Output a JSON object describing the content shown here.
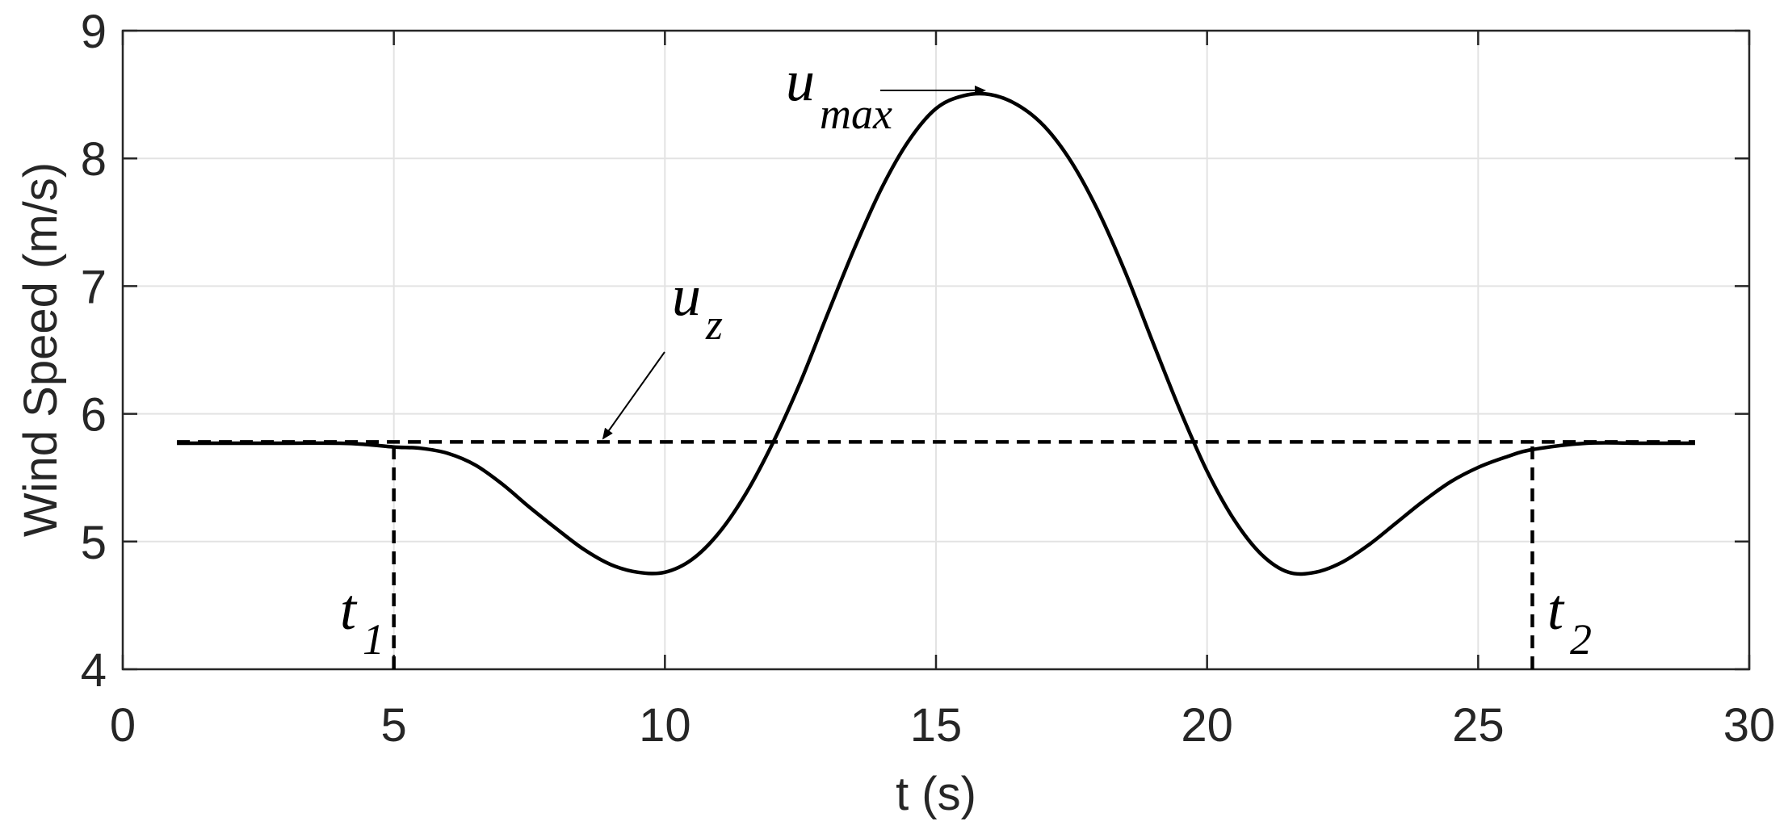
{
  "chart_data": {
    "type": "line",
    "xlabel": "t (s)",
    "ylabel": "Wind Speed  (m/s)",
    "xlim": [
      0,
      30
    ],
    "ylim": [
      4,
      9
    ],
    "xticks": [
      "0",
      "5",
      "10",
      "15",
      "20",
      "25",
      "30"
    ],
    "yticks": [
      "4",
      "5",
      "6",
      "7",
      "8",
      "9"
    ],
    "grid": true,
    "series": [
      {
        "style": "solid",
        "x": [
          1,
          2,
          3,
          4,
          4.5,
          5,
          5.5,
          6,
          6.5,
          7,
          7.5,
          8,
          8.5,
          9,
          9.5,
          10,
          10.5,
          11,
          11.5,
          12,
          12.5,
          13,
          13.5,
          14,
          14.5,
          15,
          15.5,
          16,
          16.5,
          17,
          17.5,
          18,
          18.5,
          19,
          19.5,
          20,
          20.5,
          21,
          21.5,
          22,
          22.5,
          23,
          23.5,
          24,
          24.5,
          25,
          25.5,
          26,
          27,
          28,
          29
        ],
        "y": [
          5.77,
          5.77,
          5.77,
          5.77,
          5.76,
          5.74,
          5.73,
          5.69,
          5.6,
          5.45,
          5.27,
          5.1,
          4.94,
          4.82,
          4.76,
          4.76,
          4.86,
          5.07,
          5.38,
          5.78,
          6.25,
          6.78,
          7.3,
          7.77,
          8.14,
          8.39,
          8.49,
          8.5,
          8.42,
          8.25,
          7.97,
          7.58,
          7.1,
          6.56,
          6.03,
          5.55,
          5.17,
          4.9,
          4.76,
          4.76,
          4.84,
          4.98,
          5.15,
          5.32,
          5.47,
          5.58,
          5.66,
          5.72,
          5.77,
          5.77,
          5.77
        ]
      },
      {
        "style": "dashed",
        "x": [
          1,
          29
        ],
        "y": [
          5.78,
          5.78
        ]
      }
    ],
    "reference_lines": [
      {
        "style": "dashed",
        "x": 5,
        "y_from": 4,
        "y_to": 5.78
      },
      {
        "style": "dashed",
        "x": 26,
        "y_from": 4,
        "y_to": 5.78
      }
    ],
    "annotations": [
      {
        "main": "u",
        "sub": "max"
      },
      {
        "main": "u",
        "sub": "z"
      },
      {
        "main": "t",
        "sub": "1"
      },
      {
        "main": "t",
        "sub": "2"
      }
    ]
  },
  "colors": {
    "line": "#000000",
    "axis": "#262626",
    "grid": "#e3e3e3"
  }
}
